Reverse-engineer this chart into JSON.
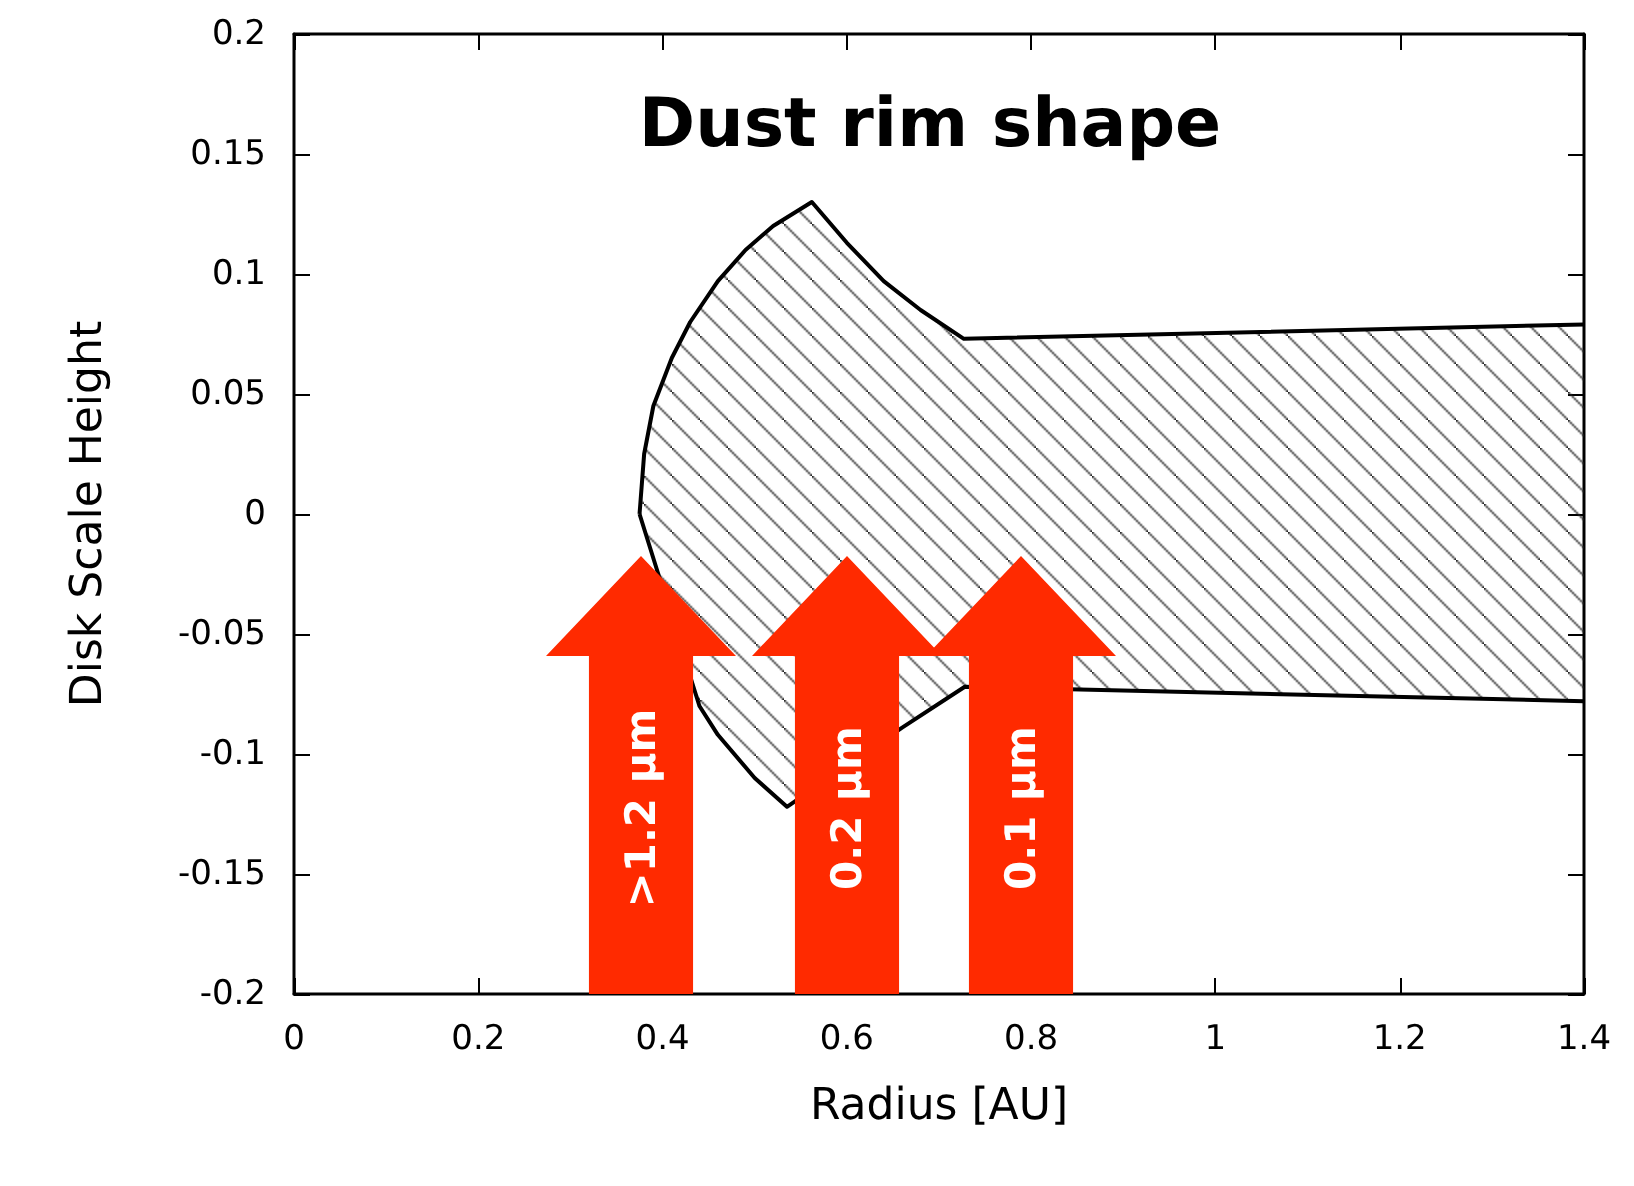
{
  "chart_data": {
    "type": "area",
    "title": "Dust rim shape",
    "xlabel": "Radius [AU]",
    "ylabel": "Disk Scale Height",
    "series": [
      {
        "color": "#000000",
        "x": [
          0.375,
          0.38,
          0.39,
          0.41,
          0.43,
          0.46,
          0.49,
          0.52,
          0.562,
          0.6,
          0.64,
          0.68,
          0.727,
          1.4
        ],
        "values": [
          0,
          0.025,
          0.045,
          0.065,
          0.08,
          0.097,
          0.11,
          0.12,
          0.13,
          0.113,
          0.097,
          0.085,
          0.073,
          0.079
        ]
      },
      {
        "color": "#000000",
        "x": [
          0.375,
          0.44,
          0.46,
          0.5,
          0.535,
          0.66,
          0.728,
          1.4
        ],
        "values": [
          0,
          -0.08,
          -0.092,
          -0.11,
          -0.122,
          -0.089,
          -0.072,
          -0.078
        ]
      }
    ],
    "annotations": [
      ">1.2 µm",
      "0.2 µm",
      "0.1 µm"
    ],
    "xlim": [
      0,
      1.4
    ],
    "xticks": [
      0,
      0.2,
      0.4,
      0.6,
      0.8,
      1,
      1.2,
      1.4
    ],
    "ylim": [
      -0.2,
      0.2
    ],
    "yticks": [
      -0.2,
      -0.15,
      -0.1,
      -0.05,
      0,
      0.05,
      0.1,
      0.15,
      0.2
    ],
    "grid": false,
    "marker": "none",
    "line_style": "solid"
  }
}
